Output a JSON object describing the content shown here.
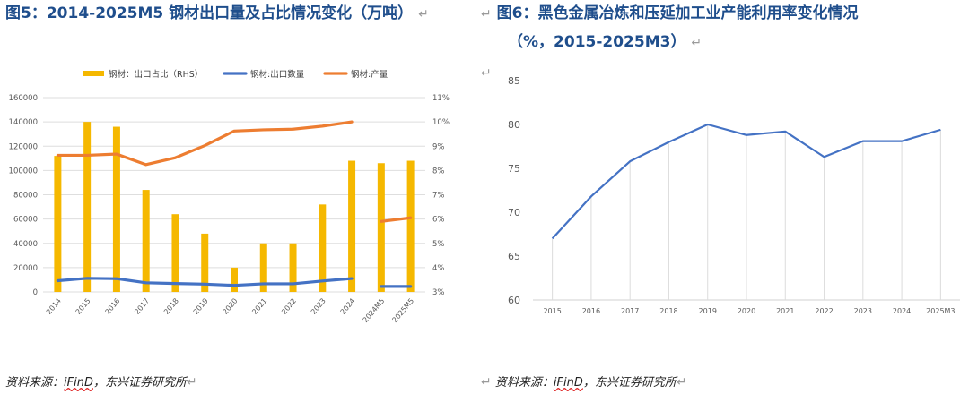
{
  "figure5": {
    "title": "图5：2014-2025M5 钢材出口量及占比情况变化（万吨）",
    "source_prefix": "资料来源：",
    "source_ifind": "iFinD",
    "source_suffix": "，东兴证券研究所"
  },
  "figure6": {
    "title_line1": "图6：黑色金属冶炼和压延加工业产能利用率变化情况",
    "title_line2": "（%，2015-2025M3）",
    "source_prefix": "资料来源：",
    "source_ifind": "iFinD",
    "source_suffix": "，东兴证券研究所"
  },
  "return_mark": "↵",
  "chart_data": [
    {
      "type": "bar",
      "title": "",
      "categories": [
        "2014",
        "2015",
        "2016",
        "2017",
        "2018",
        "2019",
        "2020",
        "2021",
        "2022",
        "2023",
        "2024",
        "2024M5",
        "2025M5"
      ],
      "legend": {
        "placement": "top"
      },
      "y_left": {
        "ylim": [
          0,
          160000
        ],
        "ticks": [
          "0",
          "20000",
          "40000",
          "60000",
          "80000",
          "100000",
          "120000",
          "140000",
          "160000"
        ]
      },
      "y_right": {
        "ylim": [
          3,
          11
        ],
        "ticks": [
          "3%",
          "4%",
          "5%",
          "6%",
          "7%",
          "8%",
          "9%",
          "10%",
          "11%"
        ]
      },
      "grid": true,
      "series": [
        {
          "name": "钢材：出口占比（RHS）",
          "type": "bar",
          "axis": "right",
          "color": "#f5b800",
          "values": [
            8.6,
            10.0,
            9.8,
            7.2,
            6.2,
            5.4,
            4.0,
            5.0,
            5.0,
            6.6,
            8.4,
            8.3,
            8.4
          ]
        },
        {
          "name": "钢材:出口数量",
          "type": "line",
          "axis": "left",
          "color": "#4472c4",
          "values": [
            9200,
            11200,
            10900,
            7500,
            6900,
            6400,
            5400,
            6700,
            6700,
            9000,
            11000,
            4500,
            4500
          ]
        },
        {
          "name": "钢材:产量",
          "type": "line",
          "axis": "left",
          "color": "#ed7d31",
          "values": [
            112500,
            112500,
            113500,
            104800,
            110500,
            120500,
            132500,
            133500,
            134000,
            136500,
            140000,
            58000,
            61000
          ]
        }
      ]
    },
    {
      "type": "line",
      "title": "",
      "categories": [
        "2015",
        "2016",
        "2017",
        "2018",
        "2019",
        "2020",
        "2021",
        "2022",
        "2023",
        "2024",
        "2025M3"
      ],
      "ylim": [
        60,
        85
      ],
      "yticks": [
        "60",
        "65",
        "70",
        "75",
        "80",
        "85"
      ],
      "grid": true,
      "series": [
        {
          "color": "#4472c4",
          "values": [
            67.0,
            71.8,
            75.8,
            78.0,
            80.0,
            78.8,
            79.2,
            76.3,
            78.1,
            78.1,
            79.4
          ]
        }
      ]
    }
  ]
}
